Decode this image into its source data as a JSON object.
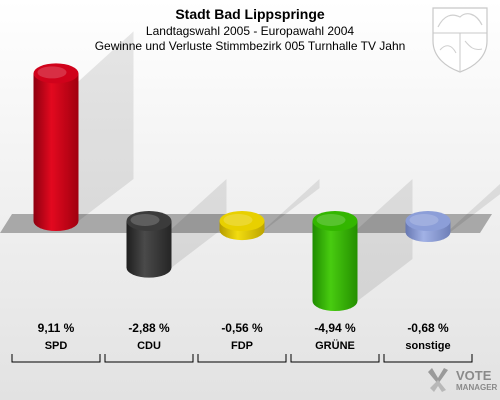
{
  "header": {
    "title": "Stadt Bad Lippspringe",
    "subtitle": "Landtagswahl 2005 - Europawahl 2004",
    "description": "Gewinne und Verluste Stimmbezirk 005 Turnhalle TV Jahn"
  },
  "chart_data": {
    "type": "bar",
    "title": "Stadt Bad Lippspringe",
    "categories": [
      "SPD",
      "CDU",
      "FDP",
      "GRÜNE",
      "sonstige"
    ],
    "values": [
      9.11,
      -2.88,
      -0.56,
      -4.94,
      -0.68
    ],
    "value_labels": [
      "9,11 %",
      "-2,88 %",
      "-0,56 %",
      "-4,94 %",
      "-0,68 %"
    ],
    "colors": [
      "#d0021b",
      "#3b3b3b",
      "#e8d000",
      "#33b600",
      "#8c9ed8"
    ],
    "ylim": [
      -5.5,
      9.5
    ],
    "grid": false,
    "legend": "none"
  },
  "logo": {
    "brand_line1": "VOTE",
    "brand_line2": "MANAGER",
    "icon": "vote-manager-logo-icon"
  },
  "crest": {
    "icon": "nrw-coat-of-arms-icon"
  }
}
